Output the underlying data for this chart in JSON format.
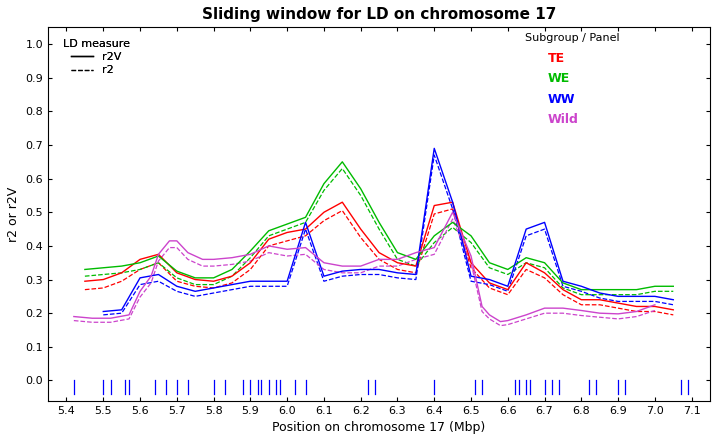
{
  "title": "Sliding window for LD on chromosome 17",
  "xlabel": "Position on chromosome 17 (Mbp)",
  "ylabel": "r2 or r2V",
  "xlim": [
    5.35,
    7.15
  ],
  "ylim": [
    -0.06,
    1.05
  ],
  "colors": {
    "TE": "#FF0000",
    "WE": "#00BB00",
    "WW": "#0000FF",
    "Wild": "#CC44CC"
  },
  "TE_r2V": [
    [
      5.45,
      0.295
    ],
    [
      5.5,
      0.3
    ],
    [
      5.55,
      0.32
    ],
    [
      5.6,
      0.36
    ],
    [
      5.65,
      0.375
    ],
    [
      5.7,
      0.32
    ],
    [
      5.75,
      0.3
    ],
    [
      5.8,
      0.295
    ],
    [
      5.85,
      0.31
    ],
    [
      5.9,
      0.35
    ],
    [
      5.95,
      0.42
    ],
    [
      6.0,
      0.44
    ],
    [
      6.05,
      0.45
    ],
    [
      6.1,
      0.5
    ],
    [
      6.15,
      0.53
    ],
    [
      6.2,
      0.45
    ],
    [
      6.25,
      0.38
    ],
    [
      6.3,
      0.35
    ],
    [
      6.35,
      0.34
    ],
    [
      6.4,
      0.52
    ],
    [
      6.45,
      0.53
    ],
    [
      6.5,
      0.35
    ],
    [
      6.55,
      0.29
    ],
    [
      6.6,
      0.27
    ],
    [
      6.65,
      0.35
    ],
    [
      6.7,
      0.32
    ],
    [
      6.75,
      0.27
    ],
    [
      6.8,
      0.24
    ],
    [
      6.85,
      0.24
    ],
    [
      6.9,
      0.23
    ],
    [
      6.95,
      0.22
    ],
    [
      7.0,
      0.22
    ],
    [
      7.05,
      0.21
    ]
  ],
  "TE_r2": [
    [
      5.45,
      0.27
    ],
    [
      5.5,
      0.275
    ],
    [
      5.55,
      0.295
    ],
    [
      5.6,
      0.33
    ],
    [
      5.65,
      0.35
    ],
    [
      5.7,
      0.295
    ],
    [
      5.75,
      0.28
    ],
    [
      5.8,
      0.275
    ],
    [
      5.85,
      0.29
    ],
    [
      5.9,
      0.33
    ],
    [
      5.95,
      0.4
    ],
    [
      6.0,
      0.415
    ],
    [
      6.05,
      0.43
    ],
    [
      6.1,
      0.475
    ],
    [
      6.15,
      0.505
    ],
    [
      6.2,
      0.425
    ],
    [
      6.25,
      0.36
    ],
    [
      6.3,
      0.33
    ],
    [
      6.35,
      0.32
    ],
    [
      6.4,
      0.495
    ],
    [
      6.45,
      0.51
    ],
    [
      6.5,
      0.335
    ],
    [
      6.55,
      0.275
    ],
    [
      6.6,
      0.255
    ],
    [
      6.65,
      0.33
    ],
    [
      6.7,
      0.305
    ],
    [
      6.75,
      0.255
    ],
    [
      6.8,
      0.225
    ],
    [
      6.85,
      0.225
    ],
    [
      6.9,
      0.215
    ],
    [
      6.95,
      0.205
    ],
    [
      7.0,
      0.205
    ],
    [
      7.05,
      0.195
    ]
  ],
  "WE_r2V": [
    [
      5.45,
      0.33
    ],
    [
      5.5,
      0.335
    ],
    [
      5.55,
      0.34
    ],
    [
      5.6,
      0.35
    ],
    [
      5.65,
      0.37
    ],
    [
      5.7,
      0.325
    ],
    [
      5.75,
      0.305
    ],
    [
      5.8,
      0.305
    ],
    [
      5.85,
      0.33
    ],
    [
      5.9,
      0.385
    ],
    [
      5.95,
      0.445
    ],
    [
      6.0,
      0.465
    ],
    [
      6.05,
      0.485
    ],
    [
      6.1,
      0.585
    ],
    [
      6.15,
      0.65
    ],
    [
      6.2,
      0.57
    ],
    [
      6.25,
      0.47
    ],
    [
      6.3,
      0.38
    ],
    [
      6.35,
      0.36
    ],
    [
      6.4,
      0.43
    ],
    [
      6.45,
      0.47
    ],
    [
      6.5,
      0.43
    ],
    [
      6.55,
      0.35
    ],
    [
      6.6,
      0.33
    ],
    [
      6.65,
      0.365
    ],
    [
      6.7,
      0.35
    ],
    [
      6.75,
      0.29
    ],
    [
      6.8,
      0.27
    ],
    [
      6.85,
      0.27
    ],
    [
      6.9,
      0.27
    ],
    [
      6.95,
      0.27
    ],
    [
      7.0,
      0.28
    ],
    [
      7.05,
      0.28
    ]
  ],
  "WE_r2": [
    [
      5.45,
      0.31
    ],
    [
      5.5,
      0.315
    ],
    [
      5.55,
      0.32
    ],
    [
      5.6,
      0.33
    ],
    [
      5.65,
      0.35
    ],
    [
      5.7,
      0.305
    ],
    [
      5.75,
      0.285
    ],
    [
      5.8,
      0.285
    ],
    [
      5.85,
      0.31
    ],
    [
      5.9,
      0.365
    ],
    [
      5.95,
      0.43
    ],
    [
      6.0,
      0.45
    ],
    [
      6.05,
      0.47
    ],
    [
      6.1,
      0.565
    ],
    [
      6.15,
      0.63
    ],
    [
      6.2,
      0.55
    ],
    [
      6.25,
      0.45
    ],
    [
      6.3,
      0.36
    ],
    [
      6.35,
      0.34
    ],
    [
      6.4,
      0.41
    ],
    [
      6.45,
      0.455
    ],
    [
      6.5,
      0.41
    ],
    [
      6.55,
      0.335
    ],
    [
      6.6,
      0.315
    ],
    [
      6.65,
      0.35
    ],
    [
      6.7,
      0.335
    ],
    [
      6.75,
      0.275
    ],
    [
      6.8,
      0.255
    ],
    [
      6.85,
      0.255
    ],
    [
      6.9,
      0.255
    ],
    [
      6.95,
      0.255
    ],
    [
      7.0,
      0.265
    ],
    [
      7.05,
      0.265
    ]
  ],
  "WW_r2V": [
    [
      5.5,
      0.205
    ],
    [
      5.55,
      0.21
    ],
    [
      5.6,
      0.305
    ],
    [
      5.65,
      0.315
    ],
    [
      5.7,
      0.28
    ],
    [
      5.75,
      0.265
    ],
    [
      5.8,
      0.275
    ],
    [
      5.85,
      0.285
    ],
    [
      5.9,
      0.295
    ],
    [
      5.95,
      0.295
    ],
    [
      6.0,
      0.295
    ],
    [
      6.05,
      0.47
    ],
    [
      6.1,
      0.31
    ],
    [
      6.15,
      0.325
    ],
    [
      6.2,
      0.33
    ],
    [
      6.25,
      0.33
    ],
    [
      6.3,
      0.32
    ],
    [
      6.35,
      0.315
    ],
    [
      6.4,
      0.69
    ],
    [
      6.45,
      0.53
    ],
    [
      6.5,
      0.31
    ],
    [
      6.55,
      0.3
    ],
    [
      6.6,
      0.28
    ],
    [
      6.65,
      0.45
    ],
    [
      6.7,
      0.47
    ],
    [
      6.75,
      0.295
    ],
    [
      6.8,
      0.28
    ],
    [
      6.85,
      0.26
    ],
    [
      6.9,
      0.25
    ],
    [
      6.95,
      0.25
    ],
    [
      7.0,
      0.25
    ],
    [
      7.05,
      0.24
    ]
  ],
  "WW_r2": [
    [
      5.5,
      0.195
    ],
    [
      5.55,
      0.2
    ],
    [
      5.6,
      0.285
    ],
    [
      5.65,
      0.295
    ],
    [
      5.7,
      0.265
    ],
    [
      5.75,
      0.25
    ],
    [
      5.8,
      0.26
    ],
    [
      5.85,
      0.27
    ],
    [
      5.9,
      0.28
    ],
    [
      5.95,
      0.28
    ],
    [
      6.0,
      0.28
    ],
    [
      6.05,
      0.45
    ],
    [
      6.1,
      0.295
    ],
    [
      6.15,
      0.31
    ],
    [
      6.2,
      0.315
    ],
    [
      6.25,
      0.315
    ],
    [
      6.3,
      0.305
    ],
    [
      6.35,
      0.3
    ],
    [
      6.4,
      0.67
    ],
    [
      6.45,
      0.51
    ],
    [
      6.5,
      0.295
    ],
    [
      6.55,
      0.285
    ],
    [
      6.6,
      0.265
    ],
    [
      6.65,
      0.43
    ],
    [
      6.7,
      0.45
    ],
    [
      6.75,
      0.28
    ],
    [
      6.8,
      0.265
    ],
    [
      6.85,
      0.245
    ],
    [
      6.9,
      0.235
    ],
    [
      6.95,
      0.235
    ],
    [
      7.0,
      0.235
    ],
    [
      7.05,
      0.225
    ]
  ],
  "Wild_r2V": [
    [
      5.42,
      0.19
    ],
    [
      5.47,
      0.185
    ],
    [
      5.52,
      0.185
    ],
    [
      5.57,
      0.195
    ],
    [
      5.6,
      0.265
    ],
    [
      5.63,
      0.31
    ],
    [
      5.65,
      0.375
    ],
    [
      5.68,
      0.415
    ],
    [
      5.7,
      0.415
    ],
    [
      5.73,
      0.38
    ],
    [
      5.77,
      0.36
    ],
    [
      5.8,
      0.36
    ],
    [
      5.85,
      0.365
    ],
    [
      5.9,
      0.375
    ],
    [
      5.95,
      0.4
    ],
    [
      6.0,
      0.39
    ],
    [
      6.05,
      0.395
    ],
    [
      6.1,
      0.35
    ],
    [
      6.15,
      0.34
    ],
    [
      6.2,
      0.34
    ],
    [
      6.25,
      0.36
    ],
    [
      6.3,
      0.36
    ],
    [
      6.35,
      0.38
    ],
    [
      6.4,
      0.395
    ],
    [
      6.45,
      0.5
    ],
    [
      6.5,
      0.37
    ],
    [
      6.53,
      0.22
    ],
    [
      6.55,
      0.195
    ],
    [
      6.58,
      0.175
    ],
    [
      6.6,
      0.178
    ],
    [
      6.65,
      0.195
    ],
    [
      6.7,
      0.215
    ],
    [
      6.75,
      0.215
    ],
    [
      6.8,
      0.208
    ],
    [
      6.85,
      0.2
    ],
    [
      6.9,
      0.198
    ],
    [
      6.95,
      0.205
    ],
    [
      7.0,
      0.225
    ]
  ],
  "Wild_r2": [
    [
      5.42,
      0.178
    ],
    [
      5.47,
      0.173
    ],
    [
      5.52,
      0.173
    ],
    [
      5.57,
      0.183
    ],
    [
      5.6,
      0.248
    ],
    [
      5.63,
      0.29
    ],
    [
      5.65,
      0.355
    ],
    [
      5.68,
      0.395
    ],
    [
      5.7,
      0.395
    ],
    [
      5.73,
      0.36
    ],
    [
      5.77,
      0.34
    ],
    [
      5.8,
      0.34
    ],
    [
      5.85,
      0.345
    ],
    [
      5.9,
      0.355
    ],
    [
      5.95,
      0.38
    ],
    [
      6.0,
      0.37
    ],
    [
      6.05,
      0.375
    ],
    [
      6.1,
      0.33
    ],
    [
      6.15,
      0.32
    ],
    [
      6.2,
      0.32
    ],
    [
      6.25,
      0.34
    ],
    [
      6.3,
      0.34
    ],
    [
      6.35,
      0.36
    ],
    [
      6.4,
      0.375
    ],
    [
      6.45,
      0.48
    ],
    [
      6.5,
      0.35
    ],
    [
      6.53,
      0.205
    ],
    [
      6.55,
      0.183
    ],
    [
      6.58,
      0.163
    ],
    [
      6.6,
      0.166
    ],
    [
      6.65,
      0.183
    ],
    [
      6.7,
      0.2
    ],
    [
      6.75,
      0.2
    ],
    [
      6.8,
      0.193
    ],
    [
      6.85,
      0.188
    ],
    [
      6.9,
      0.183
    ],
    [
      6.95,
      0.19
    ],
    [
      7.0,
      0.208
    ]
  ],
  "snp_positions": [
    5.42,
    5.5,
    5.52,
    5.56,
    5.57,
    5.64,
    5.67,
    5.7,
    5.73,
    5.8,
    5.83,
    5.88,
    5.9,
    5.92,
    5.93,
    5.95,
    5.97,
    5.98,
    6.02,
    6.05,
    6.22,
    6.24,
    6.4,
    6.51,
    6.53,
    6.62,
    6.63,
    6.65,
    6.66,
    6.7,
    6.72,
    6.74,
    6.82,
    6.84,
    6.9,
    6.92,
    7.07,
    7.09
  ],
  "xticks": [
    5.4,
    5.5,
    5.6,
    5.7,
    5.8,
    5.9,
    6.0,
    6.1,
    6.2,
    6.3,
    6.4,
    6.5,
    6.6,
    6.7,
    6.8,
    6.9,
    7.0,
    7.1
  ],
  "yticks": [
    0.0,
    0.1,
    0.2,
    0.3,
    0.4,
    0.5,
    0.6,
    0.7,
    0.8,
    0.9,
    1.0
  ]
}
